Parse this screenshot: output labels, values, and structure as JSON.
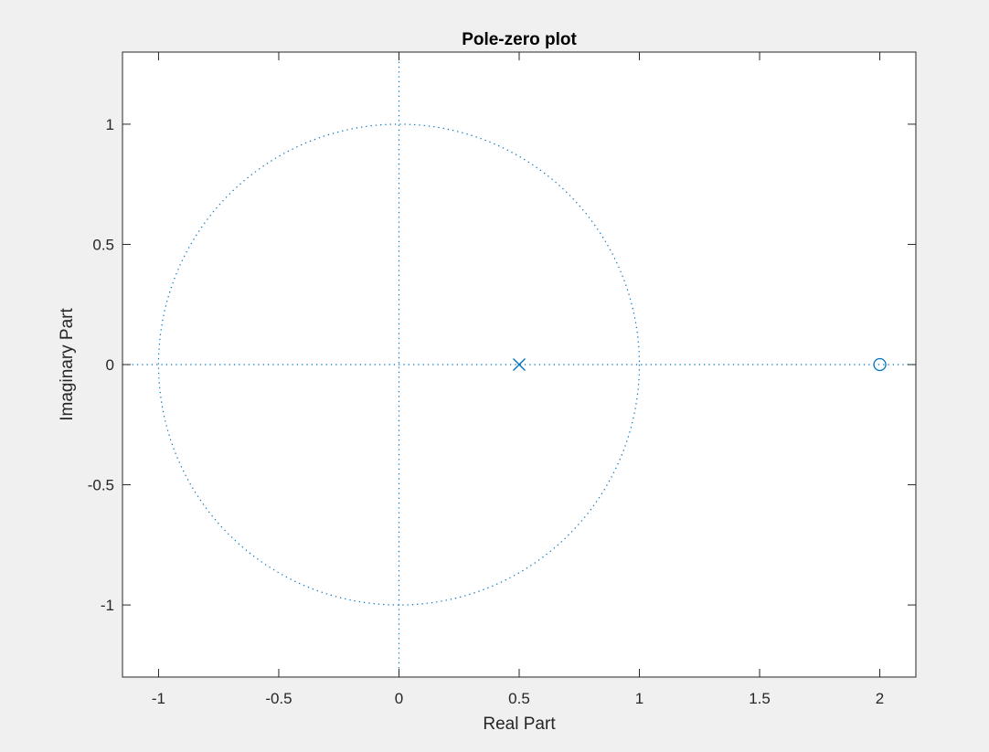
{
  "chart_data": {
    "type": "scatter",
    "title": "Pole-zero plot",
    "xlabel": "Real Part",
    "ylabel": "Imaginary Part",
    "xlim": [
      -1.15,
      2.15
    ],
    "ylim": [
      -1.3,
      1.3
    ],
    "xticks": [
      -1,
      -0.5,
      0,
      0.5,
      1,
      1.5,
      2
    ],
    "xtick_labels": [
      "-1",
      "-0.5",
      "0",
      "0.5",
      "1",
      "1.5",
      "2"
    ],
    "yticks": [
      -1,
      -0.5,
      0,
      0.5,
      1
    ],
    "ytick_labels": [
      "-1",
      "-0.5",
      "0",
      "0.5",
      "1"
    ],
    "grid": false,
    "series": [
      {
        "marker": "x",
        "points": [
          [
            0.5,
            0
          ]
        ]
      },
      {
        "marker": "o",
        "points": [
          [
            2,
            0
          ]
        ]
      }
    ],
    "reference_lines": {
      "unit_circle": {
        "center": [
          0,
          0
        ],
        "radius": 1,
        "style": "dotted"
      },
      "real_axis": {
        "y": 0,
        "style": "dotted"
      },
      "imaginary_axis": {
        "x": 0,
        "style": "dotted"
      }
    },
    "colors": {
      "series": "#0072BD",
      "axes": "#262626",
      "plot_background": "#ffffff",
      "figure_background": "#f0f0f0"
    }
  }
}
